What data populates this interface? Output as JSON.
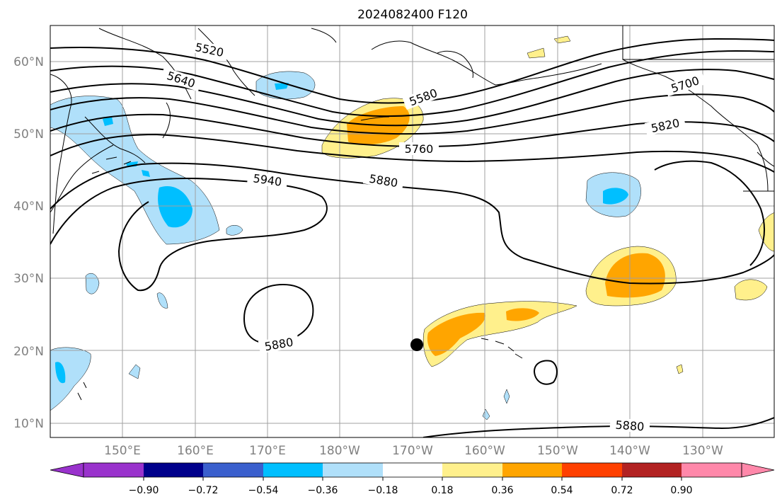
{
  "title": "2024082400 F120",
  "map": {
    "lat_labels": [
      "10°N",
      "20°N",
      "30°N",
      "40°N",
      "50°N",
      "60°N"
    ],
    "lon_labels": [
      "150°E",
      "160°E",
      "170°E",
      "180°W",
      "170°W",
      "160°W",
      "150°W",
      "140°W",
      "130°W"
    ],
    "contour_labels": [
      "5520",
      "5640",
      "5580",
      "5700",
      "5760",
      "5820",
      "5940",
      "5880",
      "5880",
      "5880"
    ]
  },
  "colorbar": {
    "tick_labels": [
      "−0.90",
      "−0.72",
      "−0.54",
      "−0.36",
      "−0.18",
      "0.18",
      "0.36",
      "0.54",
      "0.72",
      "0.90"
    ],
    "colors": [
      "#9932cc",
      "#00008b",
      "#3a5fcd",
      "#00bfff",
      "#b0e0fa",
      "#ffffff",
      "#fff08c",
      "#ffa500",
      "#ff4000",
      "#b22222",
      "#ff88aa"
    ]
  },
  "colors": {
    "neg_strong": "#00bfff",
    "neg_weak": "#b0e0fa",
    "pos_weak": "#fff08c",
    "pos_mid": "#ffa500",
    "grid": "#a0a0a0"
  }
}
